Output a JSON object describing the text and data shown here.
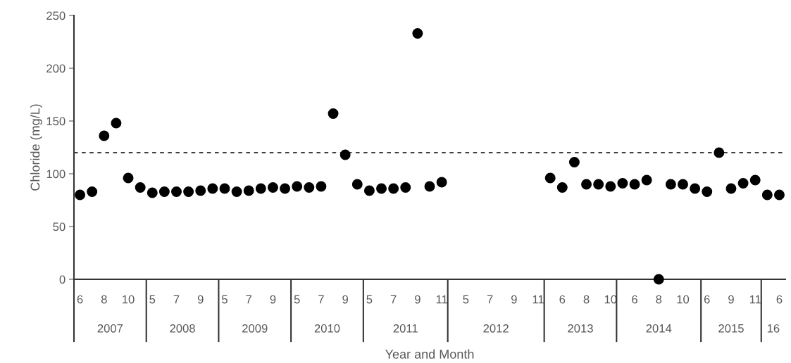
{
  "chart_data": {
    "type": "scatter",
    "xlabel": "Year and Month",
    "ylabel": "Chloride (mg/L)",
    "categories": [
      "6",
      null,
      "8",
      null,
      "10",
      null,
      "5",
      null,
      "7",
      null,
      "9",
      null,
      "5",
      null,
      "7",
      null,
      "9",
      null,
      "5",
      null,
      "7",
      null,
      "9",
      null,
      "5",
      null,
      "7",
      null,
      "9",
      null,
      "11",
      null,
      "5",
      null,
      "7",
      null,
      "9",
      null,
      "11",
      null,
      "6",
      null,
      "8",
      null,
      "10",
      null,
      "6",
      null,
      "8",
      null,
      "10",
      null,
      "6",
      null,
      "9",
      null,
      "11",
      null,
      "6"
    ],
    "annotations": [
      "2007",
      "2008",
      "2009",
      "2010",
      "2011",
      "2012",
      "2013",
      "2014",
      "2015",
      "16"
    ],
    "series": [
      {
        "color": "#000000",
        "values": [
          80,
          83,
          136,
          148,
          96,
          87,
          82,
          83,
          83,
          83,
          84,
          86,
          86,
          83,
          84,
          86,
          87,
          86,
          88,
          87,
          88,
          157,
          118,
          90,
          84,
          86,
          86,
          87,
          233,
          88,
          92,
          null,
          null,
          null,
          null,
          null,
          null,
          null,
          null,
          96,
          87,
          111,
          90,
          90,
          88,
          91,
          90,
          94,
          0,
          90,
          90,
          86,
          83,
          120,
          86,
          91,
          94,
          80,
          80
        ]
      }
    ],
    "marker": "circle",
    "ylim": [
      0,
      250
    ],
    "yticks": [
      0,
      50,
      100,
      150,
      200,
      250
    ],
    "grid": false,
    "legend": false,
    "ref_lines": [
      {
        "axis": "y",
        "value": 120,
        "color": "#000000",
        "line_style": "dashed"
      }
    ]
  }
}
